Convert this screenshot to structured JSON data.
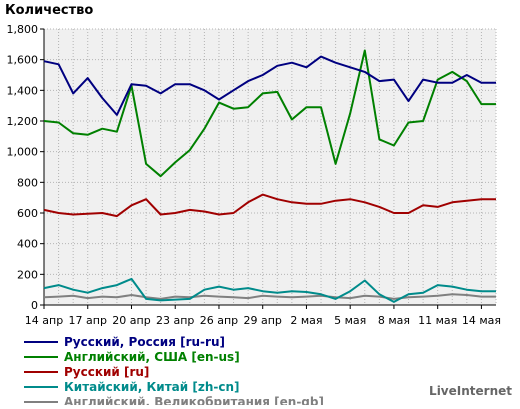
{
  "brand": "LiveInternet",
  "chart_data": {
    "type": "line",
    "title": "",
    "ylabel": "Количество",
    "xlabel": "",
    "ylim": [
      0,
      1800
    ],
    "yticks": [
      0,
      200,
      400,
      600,
      800,
      1000,
      1200,
      1400,
      1600,
      1800
    ],
    "ytick_labels": [
      "0",
      "200",
      "400",
      "600",
      "800",
      "1,000",
      "1,200",
      "1,400",
      "1,600",
      "1,800"
    ],
    "x": [
      "14 апр",
      "15 апр",
      "16 апр",
      "17 апр",
      "18 апр",
      "19 апр",
      "20 апр",
      "21 апр",
      "22 апр",
      "23 апр",
      "24 апр",
      "25 апр",
      "26 апр",
      "27 апр",
      "28 апр",
      "29 апр",
      "30 апр",
      "1 мая",
      "2 мая",
      "3 мая",
      "4 мая",
      "5 мая",
      "6 мая",
      "7 мая",
      "8 мая",
      "9 мая",
      "10 мая",
      "11 мая",
      "12 мая",
      "13 мая",
      "14 мая",
      "15 мая"
    ],
    "xtick_labels": [
      "14 апр",
      "17 апр",
      "20 апр",
      "23 апр",
      "26 апр",
      "29 апр",
      "2 мая",
      "5 мая",
      "8 мая",
      "11 мая",
      "14 мая"
    ],
    "grid": true,
    "legend_position": "bottom",
    "series": [
      {
        "name": "Русский, Россия [ru-ru]",
        "color": "#000080",
        "values": [
          1590,
          1570,
          1380,
          1480,
          1350,
          1240,
          1440,
          1430,
          1380,
          1440,
          1440,
          1400,
          1340,
          1400,
          1460,
          1500,
          1560,
          1580,
          1550,
          1620,
          1580,
          1550,
          1520,
          1460,
          1470,
          1330,
          1470,
          1450,
          1450,
          1500,
          1450,
          1450
        ]
      },
      {
        "name": "Английский, США [en-us]",
        "color": "#008000",
        "values": [
          1200,
          1190,
          1120,
          1110,
          1150,
          1130,
          1430,
          920,
          840,
          930,
          1010,
          1150,
          1320,
          1280,
          1290,
          1380,
          1390,
          1210,
          1290,
          1290,
          920,
          1250,
          1660,
          1080,
          1040,
          1190,
          1200,
          1470,
          1520,
          1460,
          1310,
          1310
        ]
      },
      {
        "name": "Русский [ru]",
        "color": "#a00000",
        "values": [
          620,
          600,
          590,
          595,
          600,
          580,
          650,
          690,
          590,
          600,
          620,
          610,
          590,
          600,
          670,
          720,
          690,
          670,
          660,
          660,
          680,
          690,
          670,
          640,
          600,
          600,
          650,
          640,
          670,
          680,
          690,
          690
        ]
      },
      {
        "name": "Китайский, Китай [zh-cn]",
        "color": "#008b8b",
        "values": [
          110,
          130,
          100,
          80,
          110,
          130,
          170,
          40,
          30,
          35,
          40,
          100,
          120,
          100,
          110,
          90,
          80,
          90,
          85,
          70,
          40,
          90,
          160,
          70,
          20,
          70,
          80,
          130,
          120,
          100,
          90,
          90
        ]
      },
      {
        "name": "Английский, Великобритания [en-gb]",
        "color": "#808080",
        "values": [
          50,
          55,
          60,
          45,
          55,
          50,
          65,
          50,
          40,
          55,
          50,
          60,
          55,
          50,
          45,
          60,
          55,
          50,
          55,
          60,
          50,
          45,
          60,
          55,
          40,
          50,
          55,
          60,
          70,
          65,
          55,
          55
        ]
      }
    ]
  }
}
